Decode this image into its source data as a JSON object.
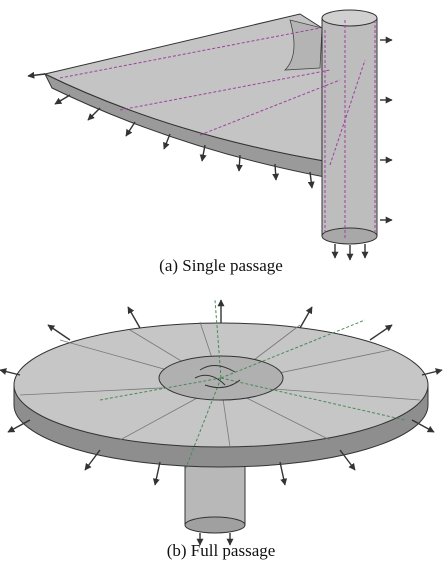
{
  "figure": {
    "panels": [
      {
        "caption": "(a) Single passage"
      },
      {
        "caption": "(b) Full passage"
      }
    ]
  }
}
